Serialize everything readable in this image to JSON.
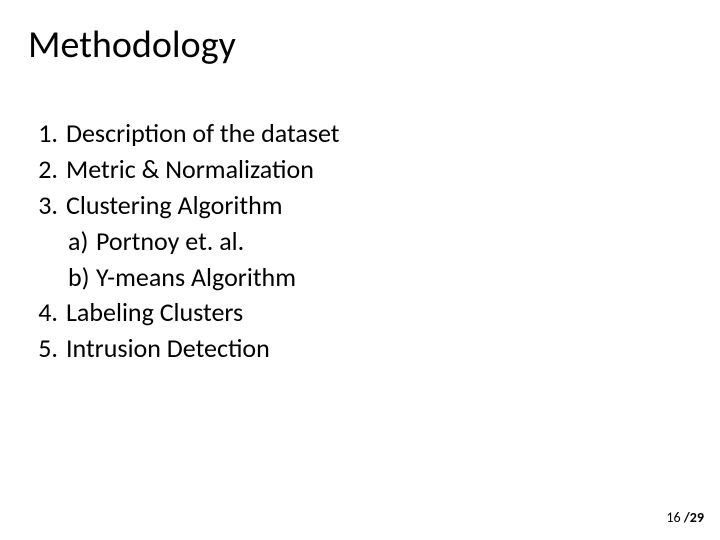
{
  "title": "Methodology",
  "items": [
    {
      "n": "1.",
      "text": "Description of the dataset"
    },
    {
      "n": "2.",
      "text": "Metric & Normalization"
    },
    {
      "n": "3.",
      "text": "Clustering Algorithm"
    }
  ],
  "subitems": [
    {
      "l": "a)",
      "text": "Portnoy et. al."
    },
    {
      "l": "b)",
      "text": "Y-means Algorithm"
    }
  ],
  "items2": [
    {
      "n": "4.",
      "text": "Labeling Clusters"
    },
    {
      "n": "5.",
      "text": "Intrusion Detection"
    }
  ],
  "page": {
    "current": "16",
    "sep": " /",
    "total": "29"
  },
  "colors": {
    "background": "#ffffff",
    "text": "#000000"
  },
  "typography": {
    "title_fontsize": 38,
    "body_fontsize": 26,
    "pagenum_fontsize": 14,
    "font_family": "Calibri"
  }
}
